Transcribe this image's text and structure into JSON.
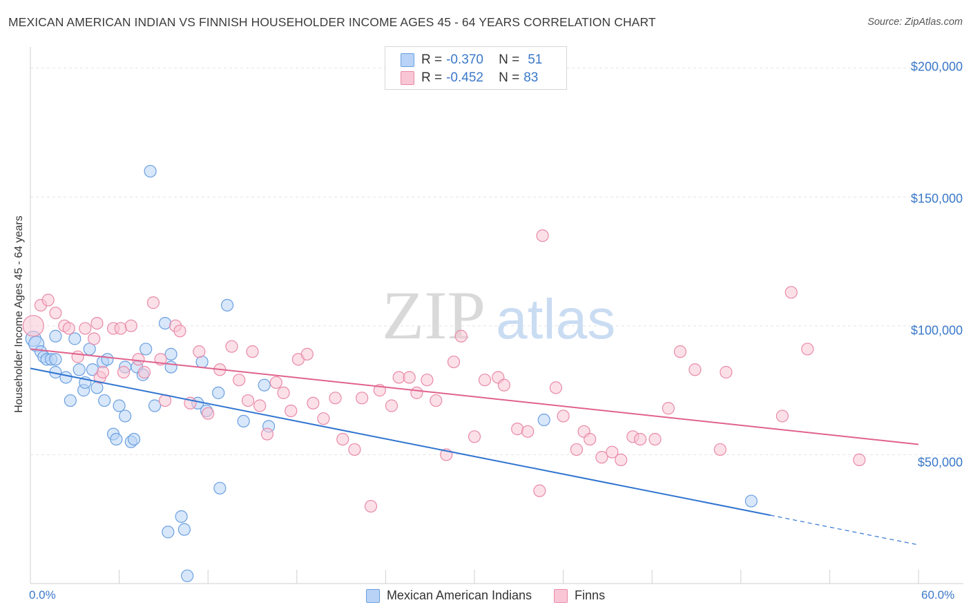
{
  "title": "MEXICAN AMERICAN INDIAN VS FINNISH HOUSEHOLDER INCOME AGES 45 - 64 YEARS CORRELATION CHART",
  "source": "Source: ZipAtlas.com",
  "watermark": {
    "zip": "ZIP",
    "atlas": "atlas"
  },
  "legend": {
    "rows": [
      {
        "r_label": "R =",
        "r_value": "-0.370",
        "n_label": "N =",
        "n_value": "51",
        "fill": "#b8d3f5",
        "stroke": "#6a9fe0"
      },
      {
        "r_label": "R =",
        "r_value": "-0.452",
        "n_label": "N =",
        "n_value": "83",
        "fill": "#f9c6d5",
        "stroke": "#e889a8"
      }
    ]
  },
  "chart_data": {
    "type": "scatter",
    "title": "MEXICAN AMERICAN INDIAN VS FINNISH HOUSEHOLDER INCOME AGES 45 - 64 YEARS CORRELATION CHART",
    "xlabel": "",
    "ylabel": "Householder Income Ages 45 - 64 years",
    "xlim": [
      0,
      60
    ],
    "ylim": [
      0,
      205000
    ],
    "x_tick_labels": [
      "0.0%",
      "60.0%"
    ],
    "y_ticks": [
      {
        "value": 50000,
        "label": "$50,000"
      },
      {
        "value": 100000,
        "label": "$100,000"
      },
      {
        "value": 150000,
        "label": "$150,000"
      },
      {
        "value": 200000,
        "label": "$200,000"
      }
    ],
    "grid": true,
    "series": [
      {
        "name": "Mexican American Indians",
        "color": "#6a9fe0",
        "fill": "#b8d3f5",
        "line_color": "#2f74d0",
        "trend": {
          "x0": 0,
          "y0": 83500,
          "x1": 50,
          "y1": 26500,
          "dash_to_x": 60,
          "dash_to_y": 15000
        },
        "points": [
          [
            0.2,
            95000
          ],
          [
            0.4,
            93000
          ],
          [
            0.7,
            90000
          ],
          [
            0.9,
            88000
          ],
          [
            1.1,
            87000
          ],
          [
            1.4,
            87000
          ],
          [
            1.7,
            96000
          ],
          [
            1.7,
            87000
          ],
          [
            1.7,
            82000
          ],
          [
            2.4,
            80000
          ],
          [
            2.7,
            71000
          ],
          [
            3.0,
            95000
          ],
          [
            3.3,
            83000
          ],
          [
            3.6,
            75000
          ],
          [
            3.7,
            78000
          ],
          [
            4.0,
            91000
          ],
          [
            4.2,
            83000
          ],
          [
            4.5,
            76000
          ],
          [
            4.9,
            86000
          ],
          [
            5.0,
            71000
          ],
          [
            5.2,
            87000
          ],
          [
            5.6,
            58000
          ],
          [
            5.8,
            56000
          ],
          [
            6.0,
            69000
          ],
          [
            6.4,
            84000
          ],
          [
            6.4,
            65000
          ],
          [
            6.8,
            55000
          ],
          [
            7.0,
            56000
          ],
          [
            7.2,
            84000
          ],
          [
            7.6,
            81000
          ],
          [
            7.8,
            91000
          ],
          [
            8.1,
            160000
          ],
          [
            8.4,
            69000
          ],
          [
            9.1,
            101000
          ],
          [
            9.3,
            20000
          ],
          [
            9.5,
            84000
          ],
          [
            9.5,
            89000
          ],
          [
            10.2,
            26000
          ],
          [
            10.4,
            21000
          ],
          [
            10.6,
            3000
          ],
          [
            11.3,
            70000
          ],
          [
            11.6,
            86000
          ],
          [
            11.9,
            67000
          ],
          [
            12.7,
            74000
          ],
          [
            12.8,
            37000
          ],
          [
            13.3,
            108000
          ],
          [
            14.4,
            63000
          ],
          [
            15.8,
            77000
          ],
          [
            16.1,
            61000
          ],
          [
            34.7,
            63500
          ],
          [
            48.7,
            32000
          ]
        ]
      },
      {
        "name": "Finns",
        "color": "#e889a8",
        "fill": "#f9c6d5",
        "line_color": "#e0628c",
        "trend": {
          "x0": 0,
          "y0": 91000,
          "x1": 60,
          "y1": 54000
        },
        "points": [
          [
            0.2,
            100000
          ],
          [
            0.7,
            108000
          ],
          [
            1.2,
            110000
          ],
          [
            1.7,
            105000
          ],
          [
            2.3,
            100000
          ],
          [
            2.6,
            99000
          ],
          [
            3.2,
            88000
          ],
          [
            3.7,
            99000
          ],
          [
            4.3,
            95000
          ],
          [
            4.5,
            101000
          ],
          [
            4.7,
            80000
          ],
          [
            4.9,
            82000
          ],
          [
            5.6,
            99000
          ],
          [
            6.1,
            99000
          ],
          [
            6.3,
            82000
          ],
          [
            6.8,
            100000
          ],
          [
            7.3,
            87000
          ],
          [
            7.7,
            82000
          ],
          [
            8.3,
            109000
          ],
          [
            8.8,
            87000
          ],
          [
            9.1,
            71000
          ],
          [
            9.8,
            100000
          ],
          [
            10.1,
            98000
          ],
          [
            10.8,
            70000
          ],
          [
            11.4,
            90000
          ],
          [
            12.0,
            66000
          ],
          [
            12.8,
            83000
          ],
          [
            13.6,
            92000
          ],
          [
            14.1,
            79000
          ],
          [
            14.7,
            71000
          ],
          [
            15.0,
            90000
          ],
          [
            15.5,
            69000
          ],
          [
            16.0,
            58000
          ],
          [
            16.6,
            78000
          ],
          [
            17.1,
            74000
          ],
          [
            17.6,
            67000
          ],
          [
            18.1,
            87000
          ],
          [
            18.7,
            89000
          ],
          [
            19.1,
            70000
          ],
          [
            19.8,
            64000
          ],
          [
            20.6,
            72000
          ],
          [
            21.1,
            56000
          ],
          [
            21.9,
            52000
          ],
          [
            22.4,
            72000
          ],
          [
            23.0,
            30000
          ],
          [
            23.6,
            75000
          ],
          [
            24.4,
            69000
          ],
          [
            24.9,
            80000
          ],
          [
            25.6,
            80000
          ],
          [
            26.1,
            74000
          ],
          [
            26.8,
            79000
          ],
          [
            27.4,
            71000
          ],
          [
            28.1,
            50000
          ],
          [
            28.6,
            86000
          ],
          [
            29.1,
            96000
          ],
          [
            30.0,
            57000
          ],
          [
            30.7,
            79000
          ],
          [
            31.6,
            80000
          ],
          [
            32.0,
            77000
          ],
          [
            32.9,
            60000
          ],
          [
            33.6,
            59000
          ],
          [
            34.4,
            36000
          ],
          [
            34.6,
            135000
          ],
          [
            35.5,
            76000
          ],
          [
            36.0,
            65000
          ],
          [
            36.9,
            52000
          ],
          [
            37.4,
            59000
          ],
          [
            37.8,
            56000
          ],
          [
            38.6,
            49000
          ],
          [
            39.3,
            51000
          ],
          [
            39.9,
            48000
          ],
          [
            40.7,
            57000
          ],
          [
            41.2,
            56000
          ],
          [
            42.2,
            56000
          ],
          [
            43.1,
            68000
          ],
          [
            43.9,
            90000
          ],
          [
            44.9,
            83000
          ],
          [
            46.6,
            52000
          ],
          [
            47.0,
            82000
          ],
          [
            50.8,
            65000
          ],
          [
            51.4,
            113000
          ],
          [
            52.5,
            91000
          ],
          [
            56.0,
            48000
          ]
        ]
      }
    ]
  }
}
